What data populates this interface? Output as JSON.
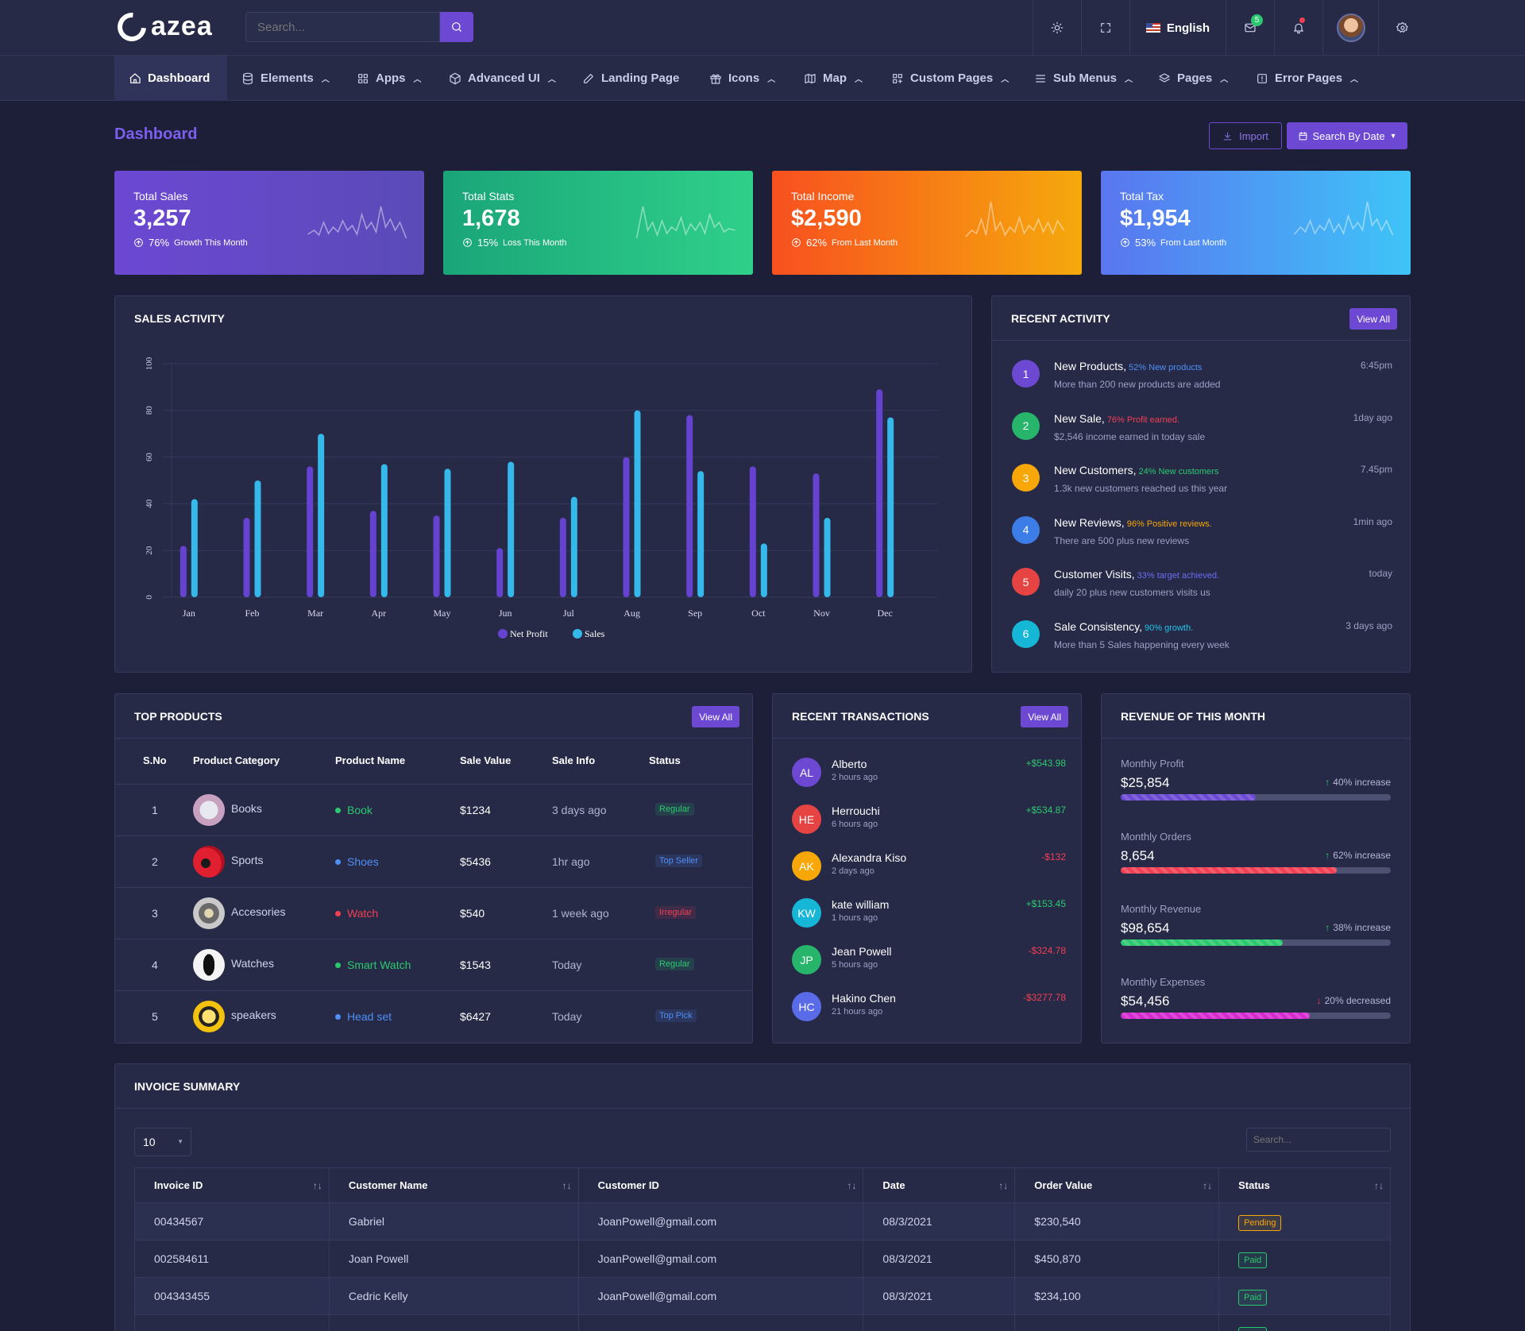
{
  "brand": {
    "name": "azea"
  },
  "header": {
    "search_placeholder": "Search...",
    "language": "English",
    "mail_count": "5"
  },
  "nav": [
    {
      "label": "Dashboard",
      "icon": "home-icon"
    },
    {
      "label": "Elements",
      "icon": "database-icon"
    },
    {
      "label": "Apps",
      "icon": "grid-icon"
    },
    {
      "label": "Advanced UI",
      "icon": "box-icon"
    },
    {
      "label": "Landing Page",
      "icon": "edit-icon"
    },
    {
      "label": "Icons",
      "icon": "gift-icon"
    },
    {
      "label": "Map",
      "icon": "map-icon"
    },
    {
      "label": "Custom Pages",
      "icon": "grid-plus-icon"
    },
    {
      "label": "Sub Menus",
      "icon": "menu-icon"
    },
    {
      "label": "Pages",
      "icon": "layers-icon"
    },
    {
      "label": "Error Pages",
      "icon": "alert-icon"
    }
  ],
  "page": {
    "title": "Dashboard",
    "import_label": "Import",
    "search_by_date_label": "Search By Date"
  },
  "stats": [
    {
      "label": "Total Sales",
      "value": "3,257",
      "pct": "76%",
      "note": "Growth This Month",
      "colors": [
        "#6c48d3",
        "#5a4bb7"
      ]
    },
    {
      "label": "Total Stats",
      "value": "1,678",
      "pct": "15%",
      "note": "Loss This Month",
      "colors": [
        "#1aa579",
        "#2fd08a"
      ]
    },
    {
      "label": "Total Income",
      "value": "$2,590",
      "pct": "62%",
      "note": "From Last Month",
      "colors": [
        "#f8501f",
        "#f5a90c"
      ]
    },
    {
      "label": "Total Tax",
      "value": "$1,954",
      "pct": "53%",
      "note": "From Last Month",
      "colors": [
        "#5a76f0",
        "#3ec4f7"
      ]
    }
  ],
  "sales_activity": {
    "title": "SALES ACTIVITY"
  },
  "chart_data": {
    "type": "bar",
    "categories": [
      "Jan",
      "Feb",
      "Mar",
      "Apr",
      "May",
      "Jun",
      "Jul",
      "Aug",
      "Sep",
      "Oct",
      "Nov",
      "Dec"
    ],
    "series": [
      {
        "name": "Net Profit",
        "values": [
          22,
          34,
          56,
          37,
          35,
          21,
          34,
          60,
          78,
          56,
          53,
          89
        ],
        "color": "#6543d0"
      },
      {
        "name": "Sales",
        "values": [
          42,
          50,
          70,
          57,
          55,
          58,
          43,
          80,
          54,
          23,
          34,
          77
        ],
        "color": "#35b8ea"
      }
    ],
    "yticks": [
      "0",
      "20",
      "40",
      "60",
      "80",
      "100"
    ],
    "ylim": [
      0,
      100
    ],
    "grid": true,
    "legend": "bottom"
  },
  "recent_activity": {
    "title": "RECENT ACTIVITY",
    "view_all": "View All",
    "items": [
      {
        "n": "1",
        "title": "New Products,",
        "hl": "52% New products",
        "hl_color": "#4f8ff7",
        "desc": "More than 200 new products are added",
        "time": "6:45pm",
        "color": "#6c48d3"
      },
      {
        "n": "2",
        "title": "New Sale,",
        "hl": "76% Profit earned.",
        "hl_color": "#f23f54",
        "desc": "$2,546 income earned in today sale",
        "time": "1day ago",
        "color": "#26b56b"
      },
      {
        "n": "3",
        "title": "New Customers,",
        "hl": "24% New customers",
        "hl_color": "#2bc96f",
        "desc": "1.3k new customers reached us this year",
        "time": "7.45pm",
        "color": "#f7a707"
      },
      {
        "n": "4",
        "title": "New Reviews,",
        "hl": "96% Positive reviews.",
        "hl_color": "#f7a707",
        "desc": "There are 500 plus new reviews",
        "time": "1min ago",
        "color": "#3d7de8"
      },
      {
        "n": "5",
        "title": "Customer Visits,",
        "hl": "33% target achieved.",
        "hl_color": "#6c6cf0",
        "desc": "daily 20 plus new customers visits us",
        "time": "today",
        "color": "#e64343"
      },
      {
        "n": "6",
        "title": "Sale Consistency,",
        "hl": "90% growth.",
        "hl_color": "#1fc4e8",
        "desc": "More than 5 Sales happening every week",
        "time": "3 days ago",
        "color": "#16b7d6"
      }
    ]
  },
  "top_products": {
    "title": "TOP PRODUCTS",
    "view_all": "View All",
    "columns": [
      "S.No",
      "Product Category",
      "Product Name",
      "Sale Value",
      "Sale Info",
      "Status"
    ],
    "rows": [
      {
        "sno": "1",
        "category": "Books",
        "name": "Book",
        "name_color": "#2bc96f",
        "value": "$1234",
        "info": "3 days ago",
        "status": "Regular",
        "status_color": "#2bc96f",
        "img": "book-image"
      },
      {
        "sno": "2",
        "category": "Sports",
        "name": "Shoes",
        "name_color": "#4f8ff7",
        "value": "$5436",
        "info": "1hr ago",
        "status": "Top Seller",
        "status_color": "#4f8ff7",
        "img": "shoe-image"
      },
      {
        "sno": "3",
        "category": "Accesories",
        "name": "Watch",
        "name_color": "#f23f54",
        "value": "$540",
        "info": "1 week ago",
        "status": "Irregular",
        "status_color": "#f23f54",
        "img": "watch-image"
      },
      {
        "sno": "4",
        "category": "Watches",
        "name": "Smart Watch",
        "name_color": "#2bc96f",
        "value": "$1543",
        "info": "Today",
        "status": "Regular",
        "status_color": "#2bc96f",
        "img": "smartwatch-image"
      },
      {
        "sno": "5",
        "category": "speakers",
        "name": "Head set",
        "name_color": "#4f8ff7",
        "value": "$6427",
        "info": "Today",
        "status": "Top Pick",
        "status_color": "#4f8ff7",
        "img": "headset-image"
      }
    ]
  },
  "recent_transactions": {
    "title": "RECENT TRANSACTIONS",
    "view_all": "View All",
    "items": [
      {
        "initials": "AL",
        "name": "Alberto",
        "when": "2 hours ago",
        "amount": "+$543.98",
        "color": "#6c48d3",
        "amount_color": "#2bc96f"
      },
      {
        "initials": "HE",
        "name": "Herrouchi",
        "when": "6 hours ago",
        "amount": "+$534.87",
        "color": "#e64343",
        "amount_color": "#2bc96f"
      },
      {
        "initials": "AK",
        "name": "Alexandra Kiso",
        "when": "2 days ago",
        "amount": "-$132",
        "color": "#f7a707",
        "amount_color": "#f23f54"
      },
      {
        "initials": "KW",
        "name": "kate william",
        "when": "1 hours ago",
        "amount": "+$153.45",
        "color": "#16b7d6",
        "amount_color": "#2bc96f"
      },
      {
        "initials": "JP",
        "name": "Jean Powell",
        "when": "5 hours ago",
        "amount": "-$324.78",
        "color": "#26b56b",
        "amount_color": "#f23f54"
      },
      {
        "initials": "HC",
        "name": "Hakino Chen",
        "when": "21 hours ago",
        "amount": "-$3277.78",
        "color": "#5a6be8",
        "amount_color": "#f23f54"
      }
    ]
  },
  "revenue": {
    "title": "REVENUE OF THIS MONTH",
    "items": [
      {
        "label": "Monthly Profit",
        "value": "$25,854",
        "change": "40% increase",
        "dir": "up",
        "progress": 0.5,
        "color": "#6c48d3"
      },
      {
        "label": "Monthly Orders",
        "value": "8,654",
        "change": "62% increase",
        "dir": "up",
        "progress": 0.8,
        "color": "#f23f54"
      },
      {
        "label": "Monthly Revenue",
        "value": "$98,654",
        "change": "38% increase",
        "dir": "up",
        "progress": 0.6,
        "color": "#2bc96f"
      },
      {
        "label": "Monthly Expenses",
        "value": "$54,456",
        "change": "20% decreased",
        "dir": "down",
        "progress": 0.7,
        "color": "#d62ad0"
      }
    ]
  },
  "invoice": {
    "title": "INVOICE SUMMARY",
    "page_size": "10",
    "search_placeholder": "Search...",
    "columns": [
      "Invoice ID",
      "Customer Name",
      "Customer ID",
      "Date",
      "Order Value",
      "Status"
    ],
    "rows": [
      {
        "id": "00434567",
        "name": "Gabriel",
        "cid": "JoanPowell@gmail.com",
        "date": "08/3/2021",
        "value": "$230,540",
        "status": "Pending",
        "status_color": "#f7a707"
      },
      {
        "id": "002584611",
        "name": "Joan Powell",
        "cid": "JoanPowell@gmail.com",
        "date": "08/3/2021",
        "value": "$450,870",
        "status": "Paid",
        "status_color": "#2bc96f"
      },
      {
        "id": "004343455",
        "name": "Cedric Kelly",
        "cid": "JoanPowell@gmail.com",
        "date": "08/3/2021",
        "value": "$234,100",
        "status": "Paid",
        "status_color": "#2bc96f"
      },
      {
        "id": "",
        "name": "",
        "cid": "",
        "date": "",
        "value": "",
        "status": "Paid",
        "status_color": "#2bc96f"
      }
    ]
  }
}
